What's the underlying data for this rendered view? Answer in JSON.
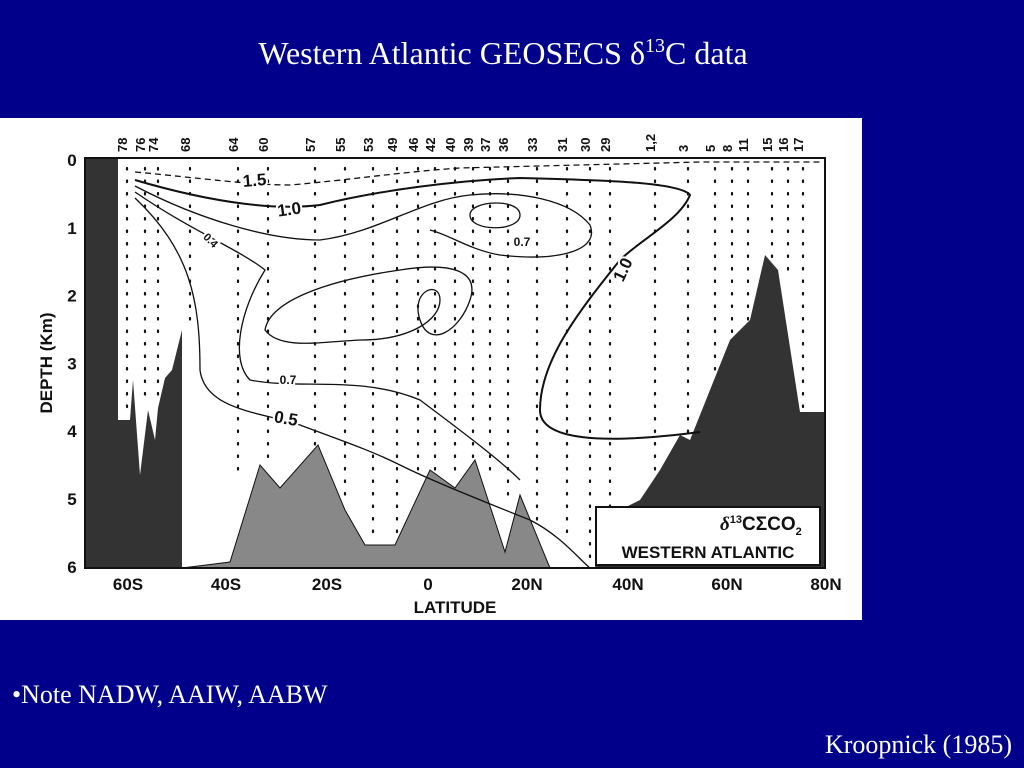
{
  "slide": {
    "title": {
      "prefix": "Western Atlantic GEOSECS δ",
      "sup": "13",
      "suffix": "C data"
    },
    "figure": {
      "y_axis_label": "DEPTH (Km)",
      "y_ticks": [
        "0",
        "1",
        "2",
        "3",
        "4",
        "5",
        "6"
      ],
      "x_axis_label": "LATITUDE",
      "x_ticks": [
        "60S",
        "40S",
        "20S",
        "0",
        "20N",
        "40N",
        "60N",
        "80N"
      ],
      "stations": [
        "78",
        "76",
        "74",
        "68",
        "64",
        "60",
        "57",
        "55",
        "53",
        "49",
        "46",
        "42",
        "40",
        "39",
        "37",
        "36",
        "33",
        "31",
        "30",
        "29",
        "1,2",
        "3",
        "5",
        "8",
        "11",
        "15",
        "16",
        "17"
      ],
      "contour_labels": [
        "1.5",
        "1.0",
        "0.7",
        "0.4",
        "0.7",
        "0.5",
        "1.0"
      ],
      "legend": {
        "symbol": "δ",
        "sup": "13",
        "c": "C",
        "sigma": "ΣCO",
        "sub": "2",
        "region": "WESTERN ATLANTIC"
      }
    },
    "bullet": "•Note NADW, AAIW, AABW",
    "citation": "Kroopnick (1985)"
  }
}
